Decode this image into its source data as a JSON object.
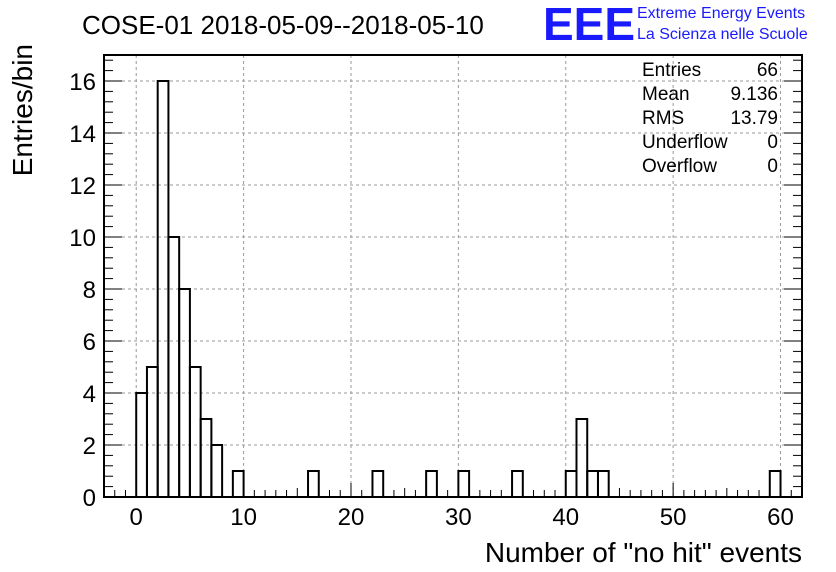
{
  "chart_data": {
    "type": "bar",
    "title": "COSE-01 2018-05-09--2018-05-10",
    "xlabel": "Number of \"no hit\" events",
    "ylabel": "Entries/bin",
    "bin_width": 1,
    "xlim": [
      -3,
      62
    ],
    "ylim": [
      0,
      17
    ],
    "grid": true,
    "x_ticks": [
      0,
      10,
      20,
      30,
      40,
      50,
      60
    ],
    "y_ticks": [
      0,
      2,
      4,
      6,
      8,
      10,
      12,
      14,
      16
    ],
    "bins": [
      {
        "x": 0,
        "value": 4
      },
      {
        "x": 1,
        "value": 5
      },
      {
        "x": 2,
        "value": 16
      },
      {
        "x": 3,
        "value": 10
      },
      {
        "x": 4,
        "value": 8
      },
      {
        "x": 5,
        "value": 5
      },
      {
        "x": 6,
        "value": 3
      },
      {
        "x": 7,
        "value": 2
      },
      {
        "x": 9,
        "value": 1
      },
      {
        "x": 16,
        "value": 1
      },
      {
        "x": 22,
        "value": 1
      },
      {
        "x": 27,
        "value": 1
      },
      {
        "x": 30,
        "value": 1
      },
      {
        "x": 35,
        "value": 1
      },
      {
        "x": 40,
        "value": 1
      },
      {
        "x": 41,
        "value": 3
      },
      {
        "x": 42,
        "value": 1
      },
      {
        "x": 43,
        "value": 1
      },
      {
        "x": 59,
        "value": 1
      }
    ],
    "stats": [
      {
        "label": "Entries",
        "value": "66"
      },
      {
        "label": "Mean",
        "value": "9.136"
      },
      {
        "label": "RMS",
        "value": "13.79"
      },
      {
        "label": "Underflow",
        "value": "0"
      },
      {
        "label": "Overflow",
        "value": "0"
      }
    ]
  },
  "logo": {
    "letters": "EEE",
    "line1": "Extreme Energy Events",
    "line2": "La Scienza nelle Scuole",
    "color": "#1a1aff"
  }
}
